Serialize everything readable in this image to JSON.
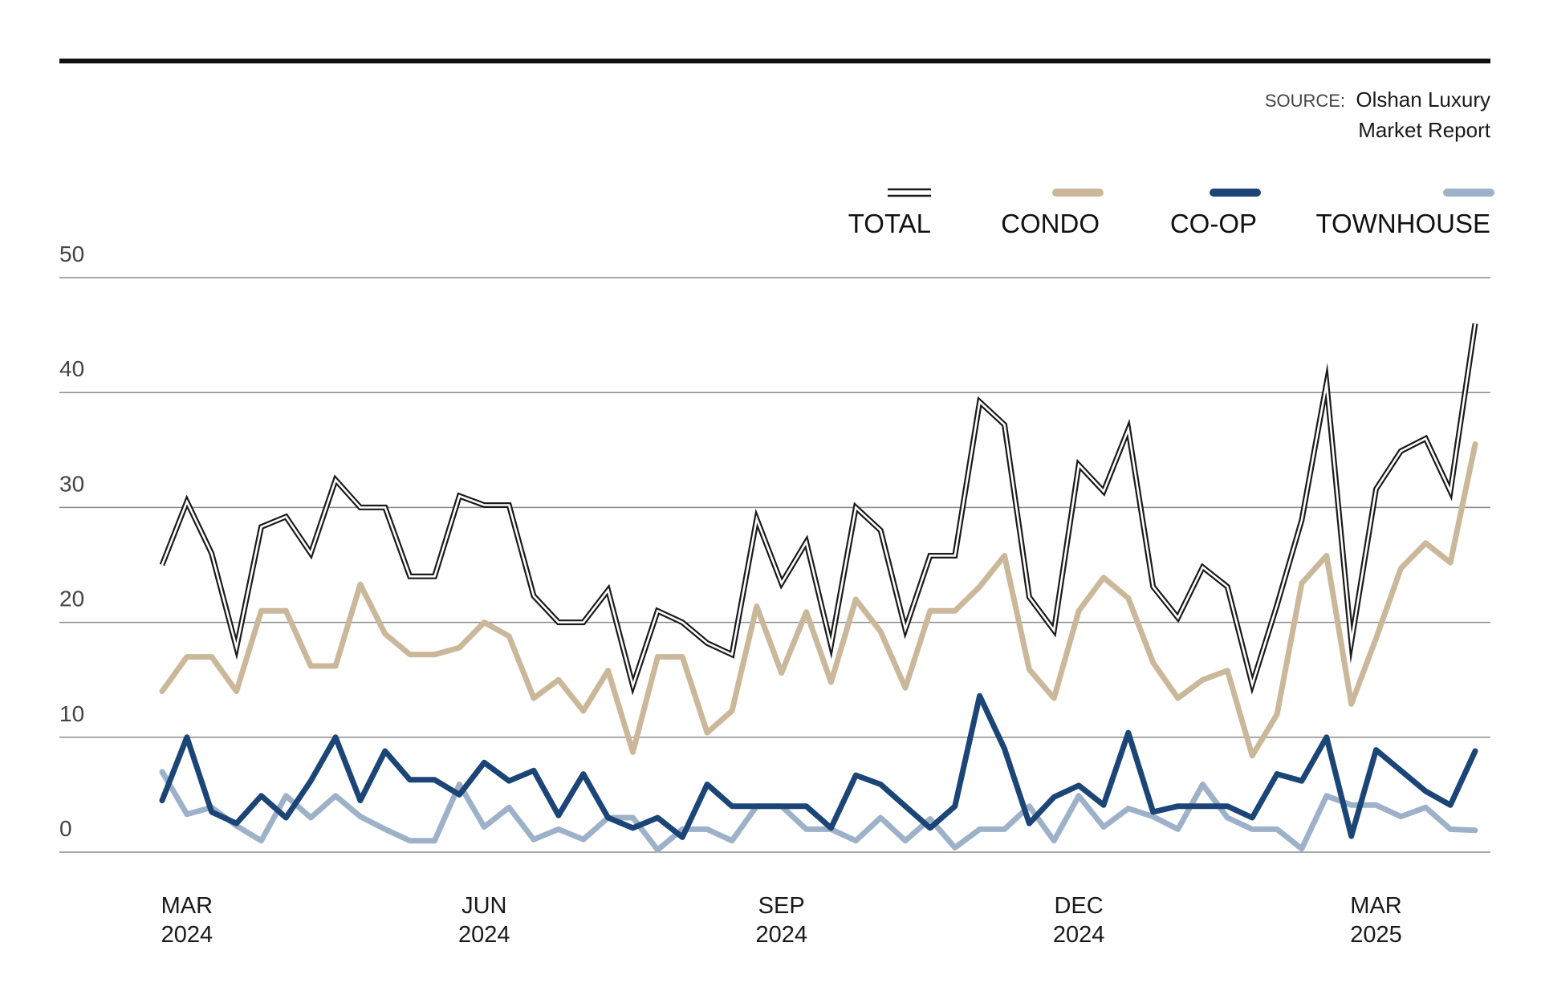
{
  "source": {
    "prefix": "SOURCE:",
    "line1": "Olshan Luxury",
    "line2": "Market Report"
  },
  "chart_data": {
    "type": "line",
    "ylim": [
      0,
      50
    ],
    "yticks": [
      0,
      10,
      20,
      30,
      40,
      50
    ],
    "grid": true,
    "legend_placement": "top-right",
    "x_labels": [
      {
        "index": 1,
        "month": "MAR",
        "year": "2024"
      },
      {
        "index": 13,
        "month": "JUN",
        "year": "2024"
      },
      {
        "index": 25,
        "month": "SEP",
        "year": "2024"
      },
      {
        "index": 37,
        "month": "DEC",
        "year": "2024"
      },
      {
        "index": 49,
        "month": "MAR",
        "year": "2025"
      }
    ],
    "series": [
      {
        "name": "TOTAL",
        "color": "#1a1a1a",
        "style": "double",
        "values": [
          25,
          30.5,
          26,
          17.8,
          28.3,
          29.2,
          26,
          32.4,
          30,
          30,
          24,
          24,
          31,
          30.2,
          30.2,
          22.3,
          20,
          20,
          22.8,
          14.5,
          21,
          20,
          18.2,
          17.2,
          29,
          23.4,
          27,
          18,
          30,
          28,
          19.4,
          25.8,
          25.8,
          39.2,
          37.2,
          22.2,
          19.3,
          33.7,
          31.4,
          36.8,
          23.1,
          20.4,
          24.8,
          23.1,
          14.6,
          21.5,
          28.9,
          40.8,
          18.3,
          31.6,
          34.9,
          36,
          31.4,
          46
        ]
      },
      {
        "name": "CONDO",
        "color": "#cbb89a",
        "style": "solid",
        "values": [
          14,
          17,
          17,
          14,
          21,
          21,
          16.2,
          16.2,
          23.3,
          19,
          17.2,
          17.2,
          17.8,
          20,
          18.8,
          13.4,
          15,
          12.3,
          15.8,
          8.7,
          17,
          17,
          10.4,
          12.3,
          21.4,
          15.6,
          20.9,
          14.8,
          22,
          19.2,
          14.3,
          21,
          21,
          23.1,
          25.8,
          15.9,
          13.4,
          21,
          23.9,
          22.1,
          16.5,
          13.4,
          15,
          15.8,
          8.4,
          12,
          23.4,
          25.8,
          12.9,
          18.6,
          24.7,
          26.9,
          25.2,
          35.5
        ]
      },
      {
        "name": "CO-OP",
        "color": "#1b4577",
        "style": "solid",
        "values": [
          4.5,
          10,
          3.5,
          2.5,
          4.9,
          3,
          6.2,
          10,
          4.5,
          8.8,
          6.3,
          6.3,
          5,
          7.8,
          6.2,
          7.1,
          3.2,
          6.8,
          3,
          2.1,
          3,
          1.3,
          5.9,
          4,
          4,
          4,
          4,
          2.1,
          6.7,
          5.9,
          4,
          2.1,
          4,
          13.6,
          9,
          2.5,
          4.8,
          5.8,
          4.1,
          10.4,
          3.5,
          4,
          4,
          4,
          3,
          6.8,
          6.2,
          10,
          1.4,
          8.9,
          7.1,
          5.3,
          4.1,
          8.8
        ]
      },
      {
        "name": "TOWNHOUSE",
        "color": "#9db2c9",
        "style": "solid",
        "values": [
          7,
          3.3,
          3.9,
          2.3,
          1,
          4.9,
          3,
          4.9,
          3.1,
          2,
          1,
          1,
          5.9,
          2.2,
          3.9,
          1.1,
          2,
          1.1,
          3,
          3,
          0.2,
          2,
          2,
          1,
          4,
          4,
          2,
          2,
          1,
          3,
          1,
          2.9,
          0.4,
          2,
          2,
          4,
          1,
          4.9,
          2.2,
          3.8,
          3.1,
          2,
          5.9,
          3,
          2,
          2,
          0.3,
          4.9,
          4.1,
          4.1,
          3.1,
          3.9,
          2,
          1.9
        ]
      }
    ]
  }
}
